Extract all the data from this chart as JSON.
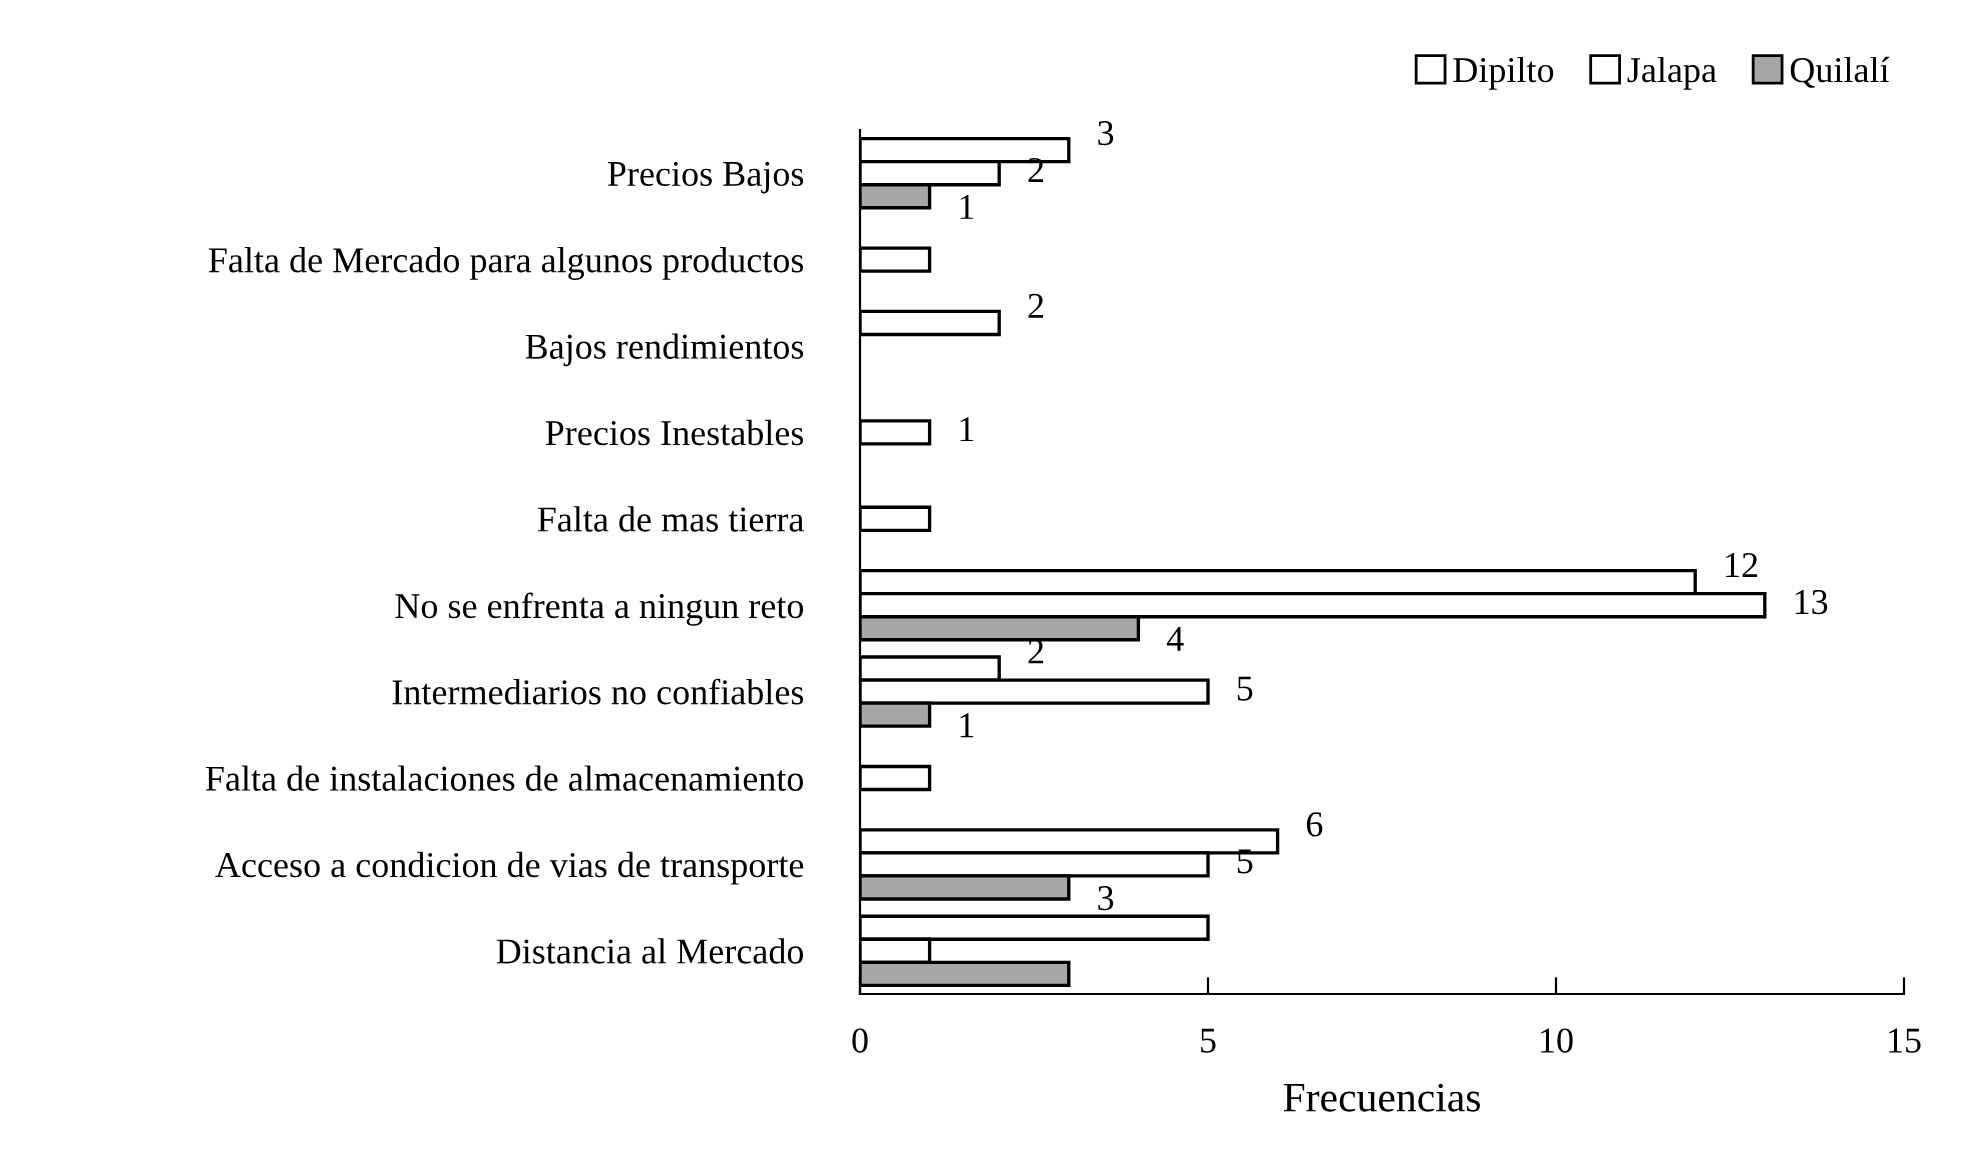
{
  "chart_data": {
    "type": "bar",
    "orientation": "horizontal",
    "xlabel": "Frecuencias",
    "categories": [
      "Precios Bajos",
      "Falta de Mercado para algunos productos",
      "Bajos rendimientos",
      "Precios Inestables",
      "Falta de mas tierra",
      "No se enfrenta a ningun reto",
      "Intermediarios no confiables",
      "Falta de instalaciones de almacenamiento",
      "Acceso a condicion de vias de transporte",
      "Distancia al Mercado"
    ],
    "series": [
      {
        "name": "Dipilto",
        "color": "#ffffff",
        "values": [
          3,
          null,
          2,
          null,
          null,
          12,
          2,
          null,
          6,
          5
        ],
        "value_labels": [
          "3",
          null,
          "2",
          null,
          null,
          "12",
          "2",
          null,
          "6",
          null
        ]
      },
      {
        "name": "Jalapa",
        "color": "#ffffff",
        "values": [
          2,
          1,
          null,
          1,
          1,
          13,
          5,
          1,
          5,
          1
        ],
        "value_labels": [
          "2",
          null,
          null,
          "1",
          null,
          "13",
          "5",
          null,
          "5",
          null
        ]
      },
      {
        "name": "Quilalí",
        "color": "#a6a6a6",
        "values": [
          1,
          null,
          null,
          null,
          null,
          4,
          1,
          null,
          3,
          3
        ],
        "value_labels": [
          "1",
          null,
          null,
          null,
          null,
          "4",
          "1",
          null,
          "3",
          null
        ]
      }
    ],
    "xlim": [
      0,
      15
    ],
    "xticks": [
      0,
      5,
      10,
      15
    ],
    "grid": false,
    "legend": "top right"
  }
}
